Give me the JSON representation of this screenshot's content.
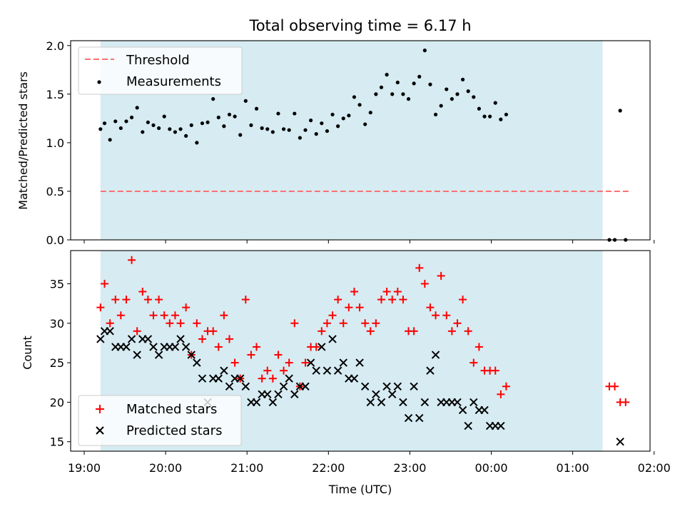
{
  "chart_data": [
    {
      "type": "scatter",
      "title": "Total observing time = 6.17 h",
      "xlabel": "",
      "ylabel": "Matched/Predicted stars",
      "ylim": [
        0,
        2.05
      ],
      "yticks": [
        0.0,
        0.5,
        1.0,
        1.5,
        2.0
      ],
      "ytick_labels": [
        "0.0",
        "0.5",
        "1.0",
        "1.5",
        "2.0"
      ],
      "shaded_span": [
        "19:12",
        "01:22"
      ],
      "legend": "top-left",
      "threshold": {
        "name": "Threshold",
        "value": 0.5,
        "x": [
          "19:12",
          "01:42"
        ],
        "color": "#ff7070"
      },
      "series": [
        {
          "name": "Measurements",
          "color": "#000000",
          "points": [
            [
              "19:12",
              1.14
            ],
            [
              "19:15",
              1.2
            ],
            [
              "19:19",
              1.03
            ],
            [
              "19:23",
              1.22
            ],
            [
              "19:27",
              1.15
            ],
            [
              "19:31",
              1.22
            ],
            [
              "19:35",
              1.26
            ],
            [
              "19:39",
              1.36
            ],
            [
              "19:43",
              1.11
            ],
            [
              "19:47",
              1.21
            ],
            [
              "19:51",
              1.18
            ],
            [
              "19:55",
              1.15
            ],
            [
              "19:59",
              1.27
            ],
            [
              "20:03",
              1.14
            ],
            [
              "20:07",
              1.11
            ],
            [
              "20:11",
              1.14
            ],
            [
              "20:15",
              1.07
            ],
            [
              "20:19",
              1.18
            ],
            [
              "20:23",
              1.0
            ],
            [
              "20:27",
              1.2
            ],
            [
              "20:31",
              1.21
            ],
            [
              "20:35",
              1.45
            ],
            [
              "20:39",
              1.26
            ],
            [
              "20:43",
              1.17
            ],
            [
              "20:47",
              1.29
            ],
            [
              "20:51",
              1.27
            ],
            [
              "20:55",
              1.08
            ],
            [
              "20:59",
              1.43
            ],
            [
              "21:03",
              1.18
            ],
            [
              "21:07",
              1.35
            ],
            [
              "21:11",
              1.15
            ],
            [
              "21:15",
              1.14
            ],
            [
              "21:19",
              1.11
            ],
            [
              "21:23",
              1.3
            ],
            [
              "21:27",
              1.14
            ],
            [
              "21:31",
              1.13
            ],
            [
              "21:35",
              1.3
            ],
            [
              "21:39",
              1.05
            ],
            [
              "21:43",
              1.13
            ],
            [
              "21:47",
              1.23
            ],
            [
              "21:51",
              1.09
            ],
            [
              "21:55",
              1.2
            ],
            [
              "21:59",
              1.12
            ],
            [
              "22:03",
              1.29
            ],
            [
              "22:07",
              1.17
            ],
            [
              "22:11",
              1.25
            ],
            [
              "22:15",
              1.28
            ],
            [
              "22:19",
              1.47
            ],
            [
              "22:23",
              1.39
            ],
            [
              "22:27",
              1.19
            ],
            [
              "22:31",
              1.31
            ],
            [
              "22:35",
              1.5
            ],
            [
              "22:39",
              1.57
            ],
            [
              "22:43",
              1.7
            ],
            [
              "22:47",
              1.5
            ],
            [
              "22:51",
              1.62
            ],
            [
              "22:55",
              1.5
            ],
            [
              "22:59",
              1.45
            ],
            [
              "23:03",
              1.61
            ],
            [
              "23:07",
              1.68
            ],
            [
              "23:11",
              1.95
            ],
            [
              "23:15",
              1.6
            ],
            [
              "23:19",
              1.29
            ],
            [
              "23:23",
              1.38
            ],
            [
              "23:27",
              1.55
            ],
            [
              "23:31",
              1.45
            ],
            [
              "23:35",
              1.5
            ],
            [
              "23:39",
              1.65
            ],
            [
              "23:43",
              1.53
            ],
            [
              "23:47",
              1.47
            ],
            [
              "23:51",
              1.35
            ],
            [
              "23:55",
              1.27
            ],
            [
              "23:59",
              1.27
            ],
            [
              "00:03",
              1.41
            ],
            [
              "00:07",
              1.24
            ],
            [
              "00:11",
              1.29
            ],
            [
              "01:27",
              0.0
            ],
            [
              "01:31",
              0.0
            ],
            [
              "01:35",
              1.33
            ],
            [
              "01:39",
              0.0
            ]
          ]
        }
      ]
    },
    {
      "type": "scatter",
      "title": "",
      "xlabel": "Time (UTC)",
      "ylabel": "Count",
      "ylim": [
        13.8,
        39.2
      ],
      "yticks": [
        15,
        20,
        25,
        30,
        35
      ],
      "ytick_labels": [
        "15",
        "20",
        "25",
        "30",
        "35"
      ],
      "xticks": [
        "19:00",
        "20:00",
        "21:00",
        "22:00",
        "23:00",
        "00:00",
        "01:00",
        "02:00"
      ],
      "shaded_span": [
        "19:12",
        "01:22"
      ],
      "legend": "bottom-left",
      "series": [
        {
          "name": "Matched stars",
          "marker": "plus",
          "color": "#ff0000",
          "values": [
            32,
            35,
            30,
            33,
            31,
            33,
            38,
            29,
            34,
            33,
            31,
            33,
            31,
            30,
            31,
            30,
            32,
            26,
            30,
            28,
            29,
            29,
            27,
            31,
            28,
            25,
            23,
            33,
            26,
            27,
            23,
            24,
            23,
            26,
            24,
            25,
            30,
            22,
            25,
            27,
            27,
            29,
            30,
            31,
            33,
            30,
            32,
            34,
            32,
            30,
            29,
            30,
            33,
            34,
            33,
            34,
            33,
            29,
            29,
            37,
            35,
            32,
            31,
            36,
            31,
            29,
            30,
            33,
            29,
            25,
            27,
            24,
            24,
            24,
            21,
            22,
            22,
            22,
            20,
            20
          ]
        },
        {
          "name": "Predicted stars",
          "marker": "x",
          "color": "#000000",
          "values": [
            28,
            29,
            29,
            27,
            27,
            27,
            28,
            26,
            28,
            28,
            27,
            26,
            27,
            27,
            27,
            28,
            27,
            26,
            25,
            23,
            20,
            23,
            23,
            24,
            22,
            23,
            23,
            22,
            20,
            20,
            21,
            21,
            20,
            21,
            22,
            23,
            21,
            22,
            22,
            25,
            24,
            27,
            24,
            28,
            24,
            25,
            23,
            23,
            25,
            22,
            20,
            21,
            20,
            22,
            21,
            22,
            20,
            18,
            22,
            18,
            20,
            24,
            26,
            20,
            20,
            20,
            20,
            19,
            17,
            20,
            19,
            19,
            17,
            17,
            17,
            null,
            null,
            null,
            15,
            null
          ]
        }
      ]
    }
  ]
}
